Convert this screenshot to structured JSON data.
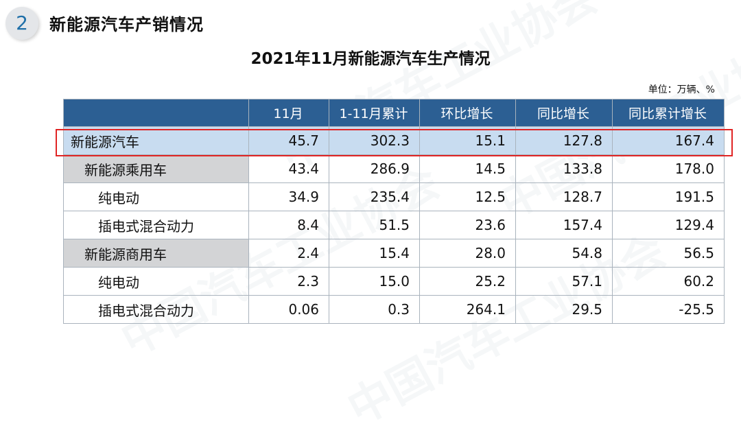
{
  "header": {
    "number": "2",
    "title": "新能源汽车产销情况"
  },
  "table_title": "2021年11月新能源汽车生产情况",
  "unit": "单位：万辆、%",
  "columns": [
    "",
    "11月",
    "1-11月累计",
    "环比增长",
    "同比增长",
    "同比累计增长"
  ],
  "rows": [
    {
      "name": "新能源汽车",
      "values": [
        "45.7",
        "302.3",
        "15.1",
        "127.8",
        "167.4"
      ]
    },
    {
      "name": "新能源乘用车",
      "values": [
        "43.4",
        "286.9",
        "14.5",
        "133.8",
        "178.0"
      ]
    },
    {
      "name": "纯电动",
      "values": [
        "34.9",
        "235.4",
        "12.5",
        "128.7",
        "191.5"
      ]
    },
    {
      "name": "插电式混合动力",
      "values": [
        "8.4",
        "51.5",
        "23.6",
        "157.4",
        "129.4"
      ]
    },
    {
      "name": "新能源商用车",
      "values": [
        "2.4",
        "15.4",
        "28.0",
        "54.8",
        "56.5"
      ]
    },
    {
      "name": "纯电动",
      "values": [
        "2.3",
        "15.0",
        "25.2",
        "57.1",
        "60.2"
      ]
    },
    {
      "name": "插电式混合动力",
      "values": [
        "0.06",
        "0.3",
        "264.1",
        "29.5",
        "-25.5"
      ]
    }
  ],
  "colors": {
    "header_bg": "#2c5f93",
    "highlight_row_bg": "#c8dcf0",
    "category_bg": "#d3d4d6",
    "highlight_border": "#e02424",
    "accent_number": "#1f6fa8"
  }
}
